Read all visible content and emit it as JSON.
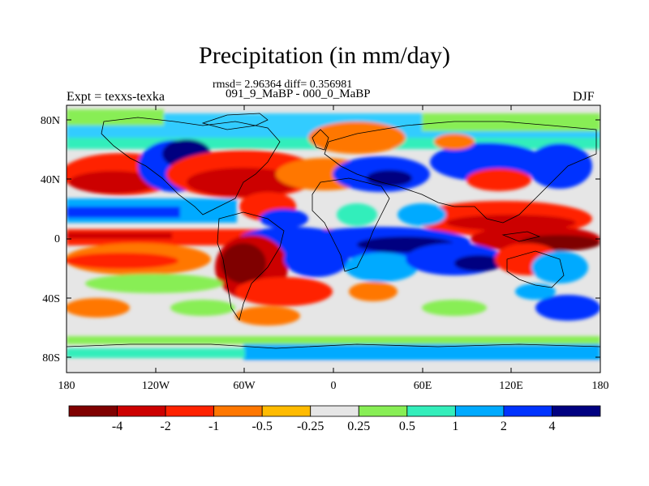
{
  "title": "Precipitation (in mm/day)",
  "stats_line": "rmsd= 2.96364 diff= 0.356981",
  "cases_line": "091_9_MaBP - 000_0_MaBP",
  "expt_label": "Expt = texxs-texka",
  "season_label": "DJF",
  "axes": {
    "lat_ticks": [
      "80N",
      "40N",
      "0",
      "40S",
      "80S"
    ],
    "lon_ticks": [
      "180",
      "120W",
      "60W",
      "0",
      "60E",
      "120E",
      "180"
    ],
    "lon_range": [
      -180,
      180
    ],
    "lat_range": [
      -90,
      90
    ]
  },
  "colorbar": {
    "labels": [
      "-4",
      "-2",
      "-1",
      "-0.5",
      "-0.25",
      "0.25",
      "0.5",
      "1",
      "2",
      "4"
    ],
    "colors": [
      "#7f0000",
      "#cc0000",
      "#ff2200",
      "#ff7700",
      "#ffbb00",
      "#e6e6e6",
      "#88ee55",
      "#33eebb",
      "#00aaff",
      "#0033ff",
      "#000080"
    ]
  }
}
